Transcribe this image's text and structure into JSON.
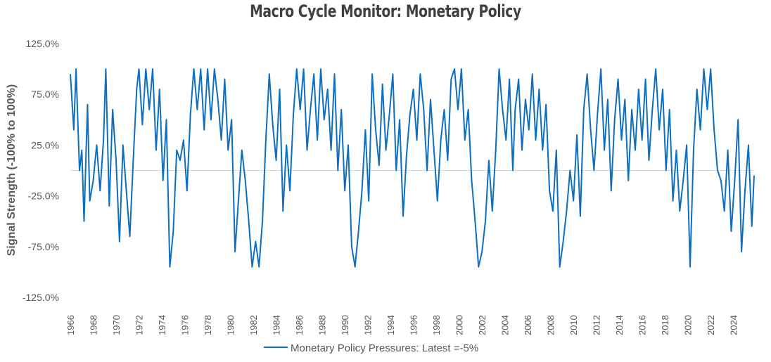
{
  "chart_data": {
    "type": "line",
    "title": "Macro Cycle Monitor: Monetary Policy",
    "ylabel": "Signal Strength (-100% to 100%)",
    "xlabel": "",
    "ylim": [
      -125,
      125
    ],
    "yticks": [
      125,
      75,
      25,
      -25,
      -75,
      -125
    ],
    "ytick_labels": [
      "125.0%",
      "75.0%",
      "25.0%",
      "-25.0%",
      "-75.0%",
      "-125.0%"
    ],
    "xlim": [
      1966,
      2025.8
    ],
    "xticks": [
      1966,
      1968,
      1970,
      1972,
      1974,
      1976,
      1978,
      1980,
      1982,
      1984,
      1986,
      1988,
      1990,
      1992,
      1994,
      1996,
      1998,
      2000,
      2002,
      2004,
      2006,
      2008,
      2010,
      2012,
      2014,
      2016,
      2018,
      2020,
      2022,
      2024
    ],
    "xtick_labels": [
      "1966",
      "1968",
      "1970",
      "1972",
      "1974",
      "1976",
      "1978",
      "1980",
      "1982",
      "1984",
      "1986",
      "1988",
      "1990",
      "1992",
      "1994",
      "1996",
      "1998",
      "2000",
      "2002",
      "2004",
      "2006",
      "2008",
      "2010",
      "2012",
      "2014",
      "2016",
      "2018",
      "2020",
      "2022",
      "2024"
    ],
    "grid": false,
    "zero_line": true,
    "legend_position": "bottom",
    "series": [
      {
        "name": "Monetary Policy Pressures: Latest =-5%",
        "color": "#0e6fc1",
        "points": [
          [
            1966.0,
            95
          ],
          [
            1966.3,
            40
          ],
          [
            1966.5,
            100
          ],
          [
            1966.8,
            0
          ],
          [
            1967.0,
            20
          ],
          [
            1967.2,
            -50
          ],
          [
            1967.5,
            65
          ],
          [
            1967.7,
            -30
          ],
          [
            1968.0,
            -10
          ],
          [
            1968.3,
            25
          ],
          [
            1968.6,
            -20
          ],
          [
            1968.9,
            30
          ],
          [
            1969.1,
            100
          ],
          [
            1969.4,
            -35
          ],
          [
            1969.7,
            60
          ],
          [
            1970.0,
            10
          ],
          [
            1970.3,
            -70
          ],
          [
            1970.6,
            25
          ],
          [
            1970.9,
            -20
          ],
          [
            1971.2,
            -65
          ],
          [
            1971.5,
            10
          ],
          [
            1971.8,
            80
          ],
          [
            1972.0,
            100
          ],
          [
            1972.3,
            45
          ],
          [
            1972.6,
            100
          ],
          [
            1972.9,
            60
          ],
          [
            1973.2,
            100
          ],
          [
            1973.5,
            20
          ],
          [
            1973.8,
            80
          ],
          [
            1974.1,
            -10
          ],
          [
            1974.4,
            50
          ],
          [
            1974.7,
            -95
          ],
          [
            1975.0,
            -60
          ],
          [
            1975.3,
            20
          ],
          [
            1975.6,
            10
          ],
          [
            1975.9,
            30
          ],
          [
            1976.2,
            -20
          ],
          [
            1976.5,
            55
          ],
          [
            1976.8,
            100
          ],
          [
            1977.1,
            60
          ],
          [
            1977.4,
            100
          ],
          [
            1977.7,
            40
          ],
          [
            1978.0,
            100
          ],
          [
            1978.3,
            50
          ],
          [
            1978.6,
            100
          ],
          [
            1978.9,
            70
          ],
          [
            1979.2,
            30
          ],
          [
            1979.5,
            90
          ],
          [
            1979.8,
            20
          ],
          [
            1980.1,
            50
          ],
          [
            1980.4,
            -80
          ],
          [
            1980.7,
            -30
          ],
          [
            1981.0,
            20
          ],
          [
            1981.3,
            -10
          ],
          [
            1981.6,
            -50
          ],
          [
            1981.9,
            -95
          ],
          [
            1982.2,
            -70
          ],
          [
            1982.5,
            -95
          ],
          [
            1982.8,
            -50
          ],
          [
            1983.1,
            30
          ],
          [
            1983.4,
            95
          ],
          [
            1983.7,
            45
          ],
          [
            1984.0,
            10
          ],
          [
            1984.3,
            80
          ],
          [
            1984.6,
            -40
          ],
          [
            1984.9,
            25
          ],
          [
            1985.2,
            -20
          ],
          [
            1985.5,
            55
          ],
          [
            1985.8,
            100
          ],
          [
            1986.1,
            60
          ],
          [
            1986.4,
            100
          ],
          [
            1986.7,
            20
          ],
          [
            1987.0,
            60
          ],
          [
            1987.3,
            95
          ],
          [
            1987.6,
            30
          ],
          [
            1987.9,
            100
          ],
          [
            1988.2,
            50
          ],
          [
            1988.5,
            80
          ],
          [
            1988.8,
            20
          ],
          [
            1989.1,
            95
          ],
          [
            1989.4,
            0
          ],
          [
            1989.7,
            60
          ],
          [
            1990.0,
            -20
          ],
          [
            1990.3,
            25
          ],
          [
            1990.6,
            -75
          ],
          [
            1990.9,
            -95
          ],
          [
            1991.2,
            -60
          ],
          [
            1991.5,
            -20
          ],
          [
            1991.8,
            40
          ],
          [
            1992.1,
            -30
          ],
          [
            1992.4,
            95
          ],
          [
            1992.7,
            40
          ],
          [
            1993.0,
            5
          ],
          [
            1993.3,
            85
          ],
          [
            1993.6,
            20
          ],
          [
            1993.9,
            55
          ],
          [
            1994.2,
            95
          ],
          [
            1994.5,
            0
          ],
          [
            1994.8,
            50
          ],
          [
            1995.1,
            -45
          ],
          [
            1995.4,
            15
          ],
          [
            1995.7,
            55
          ],
          [
            1996.0,
            80
          ],
          [
            1996.3,
            30
          ],
          [
            1996.6,
            95
          ],
          [
            1996.9,
            60
          ],
          [
            1997.2,
            0
          ],
          [
            1997.5,
            70
          ],
          [
            1997.8,
            20
          ],
          [
            1998.1,
            -30
          ],
          [
            1998.4,
            30
          ],
          [
            1998.7,
            60
          ],
          [
            1999.0,
            10
          ],
          [
            1999.3,
            90
          ],
          [
            1999.6,
            100
          ],
          [
            1999.9,
            60
          ],
          [
            2000.2,
            100
          ],
          [
            2000.5,
            30
          ],
          [
            2000.8,
            60
          ],
          [
            2001.1,
            -10
          ],
          [
            2001.4,
            -50
          ],
          [
            2001.7,
            -95
          ],
          [
            2002.0,
            -80
          ],
          [
            2002.3,
            -50
          ],
          [
            2002.6,
            10
          ],
          [
            2002.9,
            -40
          ],
          [
            2003.2,
            20
          ],
          [
            2003.5,
            100
          ],
          [
            2003.8,
            60
          ],
          [
            2004.1,
            30
          ],
          [
            2004.4,
            90
          ],
          [
            2004.7,
            0
          ],
          [
            2004.9,
            60
          ],
          [
            2005.2,
            90
          ],
          [
            2005.5,
            20
          ],
          [
            2005.8,
            70
          ],
          [
            2006.1,
            40
          ],
          [
            2006.4,
            95
          ],
          [
            2006.7,
            30
          ],
          [
            2007.0,
            80
          ],
          [
            2007.3,
            20
          ],
          [
            2007.6,
            65
          ],
          [
            2007.9,
            -20
          ],
          [
            2008.2,
            -40
          ],
          [
            2008.5,
            20
          ],
          [
            2008.8,
            -95
          ],
          [
            2009.1,
            -70
          ],
          [
            2009.4,
            -40
          ],
          [
            2009.7,
            0
          ],
          [
            2010.0,
            -30
          ],
          [
            2010.3,
            35
          ],
          [
            2010.6,
            -45
          ],
          [
            2010.9,
            60
          ],
          [
            2011.2,
            95
          ],
          [
            2011.5,
            40
          ],
          [
            2011.8,
            0
          ],
          [
            2012.1,
            55
          ],
          [
            2012.4,
            100
          ],
          [
            2012.7,
            20
          ],
          [
            2013.0,
            70
          ],
          [
            2013.3,
            -20
          ],
          [
            2013.6,
            50
          ],
          [
            2013.9,
            90
          ],
          [
            2014.2,
            30
          ],
          [
            2014.5,
            70
          ],
          [
            2014.8,
            -10
          ],
          [
            2015.1,
            60
          ],
          [
            2015.4,
            20
          ],
          [
            2015.7,
            80
          ],
          [
            2016.0,
            30
          ],
          [
            2016.3,
            90
          ],
          [
            2016.6,
            10
          ],
          [
            2016.9,
            60
          ],
          [
            2017.2,
            100
          ],
          [
            2017.5,
            40
          ],
          [
            2017.8,
            80
          ],
          [
            2018.1,
            0
          ],
          [
            2018.4,
            60
          ],
          [
            2018.7,
            -30
          ],
          [
            2019.0,
            20
          ],
          [
            2019.3,
            -40
          ],
          [
            2019.6,
            -10
          ],
          [
            2019.9,
            25
          ],
          [
            2020.2,
            -95
          ],
          [
            2020.5,
            20
          ],
          [
            2020.8,
            80
          ],
          [
            2021.1,
            40
          ],
          [
            2021.4,
            100
          ],
          [
            2021.7,
            60
          ],
          [
            2022.0,
            100
          ],
          [
            2022.3,
            40
          ],
          [
            2022.6,
            0
          ],
          [
            2022.9,
            -10
          ],
          [
            2023.2,
            -40
          ],
          [
            2023.5,
            20
          ],
          [
            2023.8,
            -60
          ],
          [
            2024.1,
            -10
          ],
          [
            2024.4,
            50
          ],
          [
            2024.7,
            -80
          ],
          [
            2025.0,
            -20
          ],
          [
            2025.3,
            25
          ],
          [
            2025.6,
            -55
          ],
          [
            2025.8,
            -5
          ]
        ]
      }
    ]
  }
}
